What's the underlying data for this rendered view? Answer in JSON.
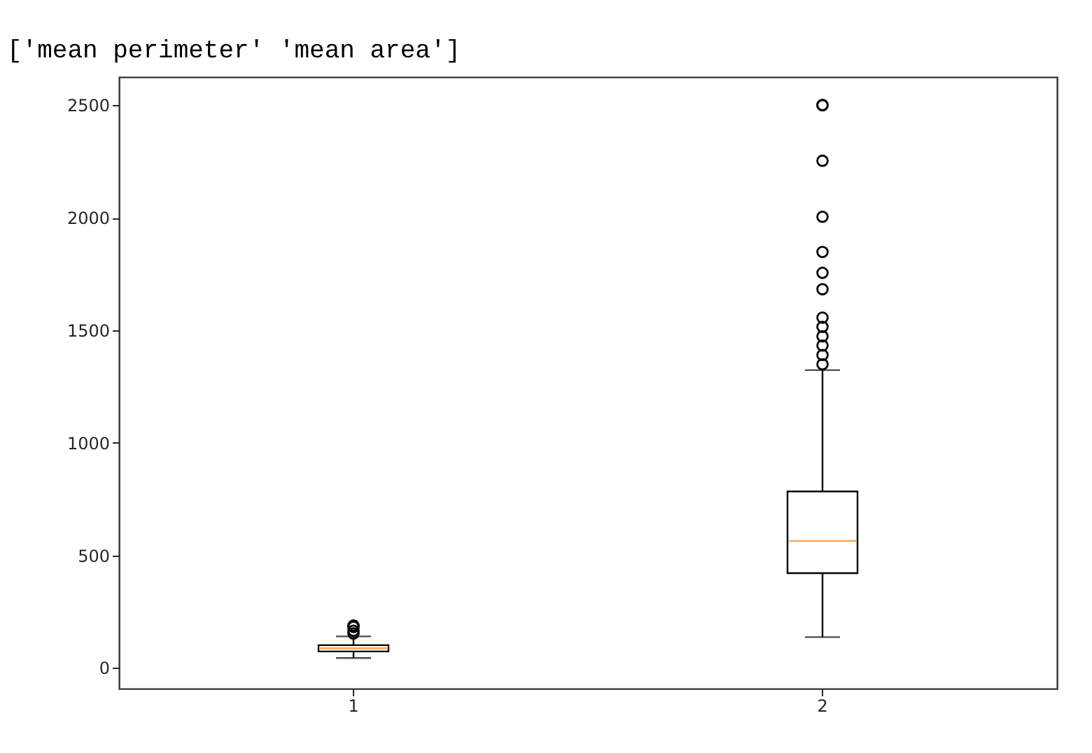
{
  "chart_data": {
    "type": "box",
    "title": "['mean perimeter' 'mean area']",
    "categories": [
      "1",
      "2"
    ],
    "series": [
      {
        "color": "#000000",
        "boxes": [
          {
            "low": 44,
            "q1": 73,
            "median": 87,
            "q3": 101,
            "high": 140,
            "outliers": [
              153,
              165,
              182,
              188
            ]
          },
          {
            "low": 137,
            "q1": 421,
            "median": 564,
            "q3": 784,
            "high": 1323,
            "outliers": [
              1349,
              1390,
              1432,
              1473,
              1515,
              1556,
              1682,
              1755,
              1848,
              2004,
              2253,
              2499,
              2501
            ]
          }
        ]
      }
    ],
    "ylim": [
      -92,
      2625
    ],
    "yticks": [
      0,
      500,
      1000,
      1500,
      2000,
      2500
    ],
    "grid": false
  }
}
